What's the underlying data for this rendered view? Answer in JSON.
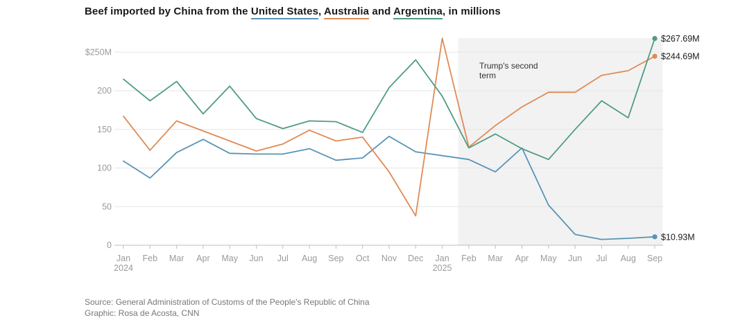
{
  "title": {
    "prefix": "Beef imported by China from the ",
    "series1": "United States",
    "sep1": ", ",
    "series2": "Australia",
    "sep2": " and ",
    "series3": "Argentina",
    "suffix": ", in millions"
  },
  "chart_data": {
    "type": "line",
    "title": "Beef imported by China from the United States, Australia and Argentina, in millions",
    "categories": [
      "Jan 2024",
      "Feb",
      "Mar",
      "Apr",
      "May",
      "Jun",
      "Jul",
      "Aug",
      "Sep",
      "Oct",
      "Nov",
      "Dec",
      "Jan 2025",
      "Feb",
      "Mar",
      "Apr",
      "May",
      "Jun",
      "Jul",
      "Aug",
      "Sep"
    ],
    "x_tick_labels": [
      {
        "top": "Jan",
        "bottom": "2024"
      },
      {
        "top": "Feb"
      },
      {
        "top": "Mar"
      },
      {
        "top": "Apr"
      },
      {
        "top": "May"
      },
      {
        "top": "Jun"
      },
      {
        "top": "Jul"
      },
      {
        "top": "Aug"
      },
      {
        "top": "Sep"
      },
      {
        "top": "Oct"
      },
      {
        "top": "Nov"
      },
      {
        "top": "Dec"
      },
      {
        "top": "Jan",
        "bottom": "2025"
      },
      {
        "top": "Feb"
      },
      {
        "top": "Mar"
      },
      {
        "top": "Apr"
      },
      {
        "top": "May"
      },
      {
        "top": "Jun"
      },
      {
        "top": "Jul"
      },
      {
        "top": "Aug"
      },
      {
        "top": "Sep"
      }
    ],
    "y_ticks": [
      0,
      50,
      100,
      150,
      200,
      250
    ],
    "y_tick_labels": [
      "0",
      "50",
      "100",
      "150",
      "200",
      "$250M"
    ],
    "ylim": [
      0,
      270
    ],
    "series": [
      {
        "name": "United States",
        "color": "#5a93b6",
        "values": [
          109,
          87,
          120,
          137,
          119,
          118,
          118,
          125,
          110,
          113,
          141,
          121,
          116,
          111,
          95,
          126,
          52,
          14,
          7.5,
          9,
          10.93
        ],
        "end_label": "$10.93M"
      },
      {
        "name": "Australia",
        "color": "#e08a55",
        "values": [
          167,
          123,
          161,
          148,
          135,
          122,
          131,
          149,
          135,
          140,
          95,
          38,
          268,
          127,
          155,
          179,
          198,
          198,
          220,
          226,
          244.69
        ],
        "end_label": "$244.69M"
      },
      {
        "name": "Argentina",
        "color": "#4f9b85",
        "values": [
          215,
          187,
          212,
          170,
          206,
          164,
          151,
          161,
          160,
          146,
          204,
          240,
          193,
          126,
          144,
          125,
          111,
          150,
          187,
          165,
          267.69
        ],
        "end_label": "$267.69M"
      }
    ],
    "shaded_region": {
      "start_index": 12.6,
      "end_index": 20.3,
      "color": "#f2f2f2"
    },
    "annotation": {
      "line1": "Trump's second",
      "line2": "term"
    },
    "grid": true
  },
  "footer": {
    "source": "Source: General Administration of Customs of the People's Republic of China",
    "graphic": "Graphic: Rosa de Acosta, CNN"
  }
}
